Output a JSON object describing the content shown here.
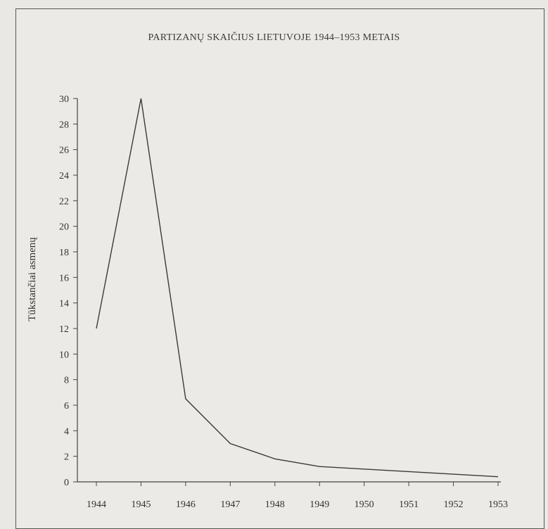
{
  "chart_data": {
    "type": "line",
    "title": "PARTIZANŲ SKAIČIUS LIETUVOJE 1944–1953 METAIS",
    "xlabel": "",
    "ylabel": "Tūkstančiai asmenų",
    "x": [
      "1944",
      "1945",
      "1946",
      "1947",
      "1948",
      "1949",
      "1950",
      "1951",
      "1952",
      "1953"
    ],
    "series": [
      {
        "values": [
          12,
          30,
          6.5,
          3.0,
          1.8,
          1.2,
          1.0,
          0.8,
          0.6,
          0.4
        ]
      }
    ],
    "ylim": [
      0,
      30
    ],
    "yticks": [
      "0",
      "2",
      "4",
      "6",
      "8",
      "10",
      "12",
      "14",
      "16",
      "18",
      "20",
      "22",
      "24",
      "26",
      "28",
      "30"
    ],
    "grid": false,
    "legend": "none",
    "colors": {
      "line": "#3a3a3a",
      "axis": "#444444"
    }
  }
}
